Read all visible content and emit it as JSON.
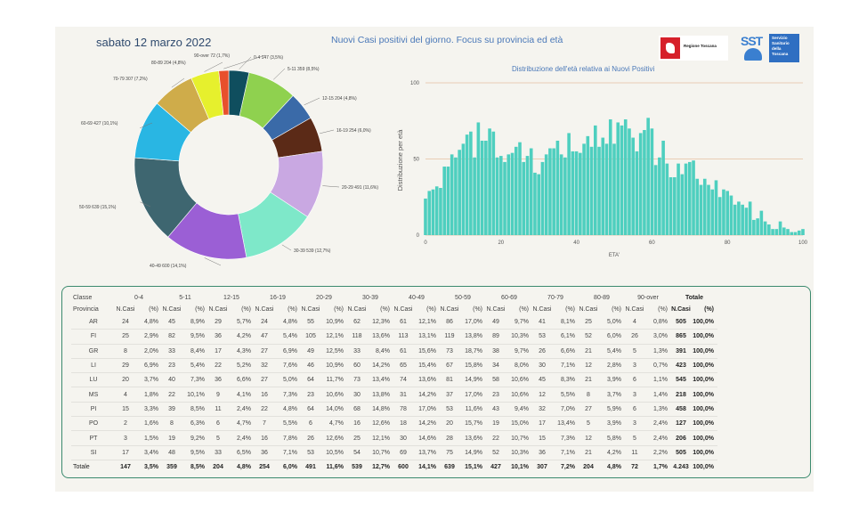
{
  "header": {
    "date": "sabato 12 marzo 2022",
    "title": "Nuovi Casi positivi del giorno. Focus su provincia ed età",
    "logo_rt": "Regione Toscana",
    "logo_sst": "SST",
    "logo_ssr": [
      "Servizio",
      "Sanitario",
      "della",
      "Toscana"
    ]
  },
  "colors": {
    "donut": [
      "#0f4e5e",
      "#8fd14f",
      "#3a6aa8",
      "#5b2a17",
      "#c9a8e2",
      "#7ee8c9",
      "#9b5fd5",
      "#3e6670",
      "#29b6e3",
      "#cfac4a",
      "#e6f02d",
      "#e8502c"
    ],
    "bars": "#4ecfbf",
    "hist_grid": "#e5c0a0"
  },
  "chart_data": [
    {
      "type": "pie",
      "title": "",
      "categories": [
        "0-4",
        "5-11",
        "12-15",
        "16-19",
        "20-29",
        "30-39",
        "40-49",
        "50-59",
        "60-69",
        "70-79",
        "80-89",
        "90-over"
      ],
      "values": [
        147,
        359,
        204,
        254,
        491,
        539,
        600,
        639,
        427,
        307,
        204,
        72
      ],
      "labels": [
        "0-4 147 (3,5%)",
        "5-11 359 (8,5%)",
        "12-15 204 (4,8%)",
        "16-19 254 (6,0%)",
        "20-29 491 (11,6%)",
        "30-39 539 (12,7%)",
        "40-49 600 (14,1%)",
        "50-59 639 (15,1%)",
        "60-69 427 (10,1%)",
        "70-79 307 (7,2%)",
        "80-89 204 (4,8%)",
        "90-over 72 (1,7%)"
      ]
    },
    {
      "type": "bar",
      "title": "Distribuzione dell'età relativa ai Nuovi Positivi",
      "xlabel": "ETA'",
      "ylabel": "Distribuzione per età",
      "xlim": [
        0,
        100
      ],
      "ylim": [
        0,
        100
      ],
      "yticks": [
        0,
        50,
        100
      ],
      "xticks": [
        0,
        20,
        40,
        60,
        80,
        100
      ],
      "x": [
        0,
        1,
        2,
        3,
        4,
        5,
        6,
        7,
        8,
        9,
        10,
        11,
        12,
        13,
        14,
        15,
        16,
        17,
        18,
        19,
        20,
        21,
        22,
        23,
        24,
        25,
        26,
        27,
        28,
        29,
        30,
        31,
        32,
        33,
        34,
        35,
        36,
        37,
        38,
        39,
        40,
        41,
        42,
        43,
        44,
        45,
        46,
        47,
        48,
        49,
        50,
        51,
        52,
        53,
        54,
        55,
        56,
        57,
        58,
        59,
        60,
        61,
        62,
        63,
        64,
        65,
        66,
        67,
        68,
        69,
        70,
        71,
        72,
        73,
        74,
        75,
        76,
        77,
        78,
        79,
        80,
        81,
        82,
        83,
        84,
        85,
        86,
        87,
        88,
        89,
        90,
        91,
        92,
        93,
        94,
        95,
        96,
        97,
        98,
        99,
        100
      ],
      "values": [
        24,
        29,
        30,
        32,
        31,
        45,
        45,
        53,
        51,
        56,
        60,
        66,
        68,
        51,
        74,
        62,
        62,
        70,
        68,
        51,
        52,
        48,
        53,
        54,
        58,
        61,
        48,
        52,
        57,
        41,
        40,
        48,
        53,
        57,
        57,
        62,
        53,
        51,
        67,
        55,
        55,
        54,
        60,
        65,
        58,
        72,
        58,
        64,
        60,
        76,
        60,
        74,
        72,
        76,
        70,
        64,
        55,
        67,
        69,
        77,
        70,
        46,
        51,
        62,
        47,
        38,
        38,
        47,
        40,
        47,
        48,
        49,
        37,
        33,
        37,
        33,
        30,
        36,
        25,
        30,
        29,
        26,
        20,
        22,
        20,
        18,
        22,
        10,
        11,
        16,
        9,
        7,
        4,
        4,
        9,
        5,
        4,
        2,
        2,
        3,
        4
      ]
    },
    {
      "type": "table",
      "class_header": "Classe",
      "province_header": "Provincia",
      "classes": [
        "0-4",
        "5-11",
        "12-15",
        "16-19",
        "20-29",
        "30-39",
        "40-49",
        "50-59",
        "60-69",
        "70-79",
        "80-89",
        "90-over"
      ],
      "subheaders": [
        "N.Casi",
        "(%)"
      ],
      "total_header": "Totale",
      "rows": [
        {
          "prov": "AR",
          "cells": [
            "24",
            "4,8%",
            "45",
            "8,9%",
            "29",
            "5,7%",
            "24",
            "4,8%",
            "55",
            "10,9%",
            "62",
            "12,3%",
            "61",
            "12,1%",
            "86",
            "17,0%",
            "49",
            "9,7%",
            "41",
            "8,1%",
            "25",
            "5,0%",
            "4",
            "0,8%"
          ],
          "tot": "505",
          "pct": "100,0%"
        },
        {
          "prov": "FI",
          "cells": [
            "25",
            "2,9%",
            "82",
            "9,5%",
            "36",
            "4,2%",
            "47",
            "5,4%",
            "105",
            "12,1%",
            "118",
            "13,6%",
            "113",
            "13,1%",
            "119",
            "13,8%",
            "89",
            "10,3%",
            "53",
            "6,1%",
            "52",
            "6,0%",
            "26",
            "3,0%"
          ],
          "tot": "865",
          "pct": "100,0%"
        },
        {
          "prov": "GR",
          "cells": [
            "8",
            "2,0%",
            "33",
            "8,4%",
            "17",
            "4,3%",
            "27",
            "6,9%",
            "49",
            "12,5%",
            "33",
            "8,4%",
            "61",
            "15,6%",
            "73",
            "18,7%",
            "38",
            "9,7%",
            "26",
            "6,6%",
            "21",
            "5,4%",
            "5",
            "1,3%"
          ],
          "tot": "391",
          "pct": "100,0%"
        },
        {
          "prov": "LI",
          "cells": [
            "29",
            "6,9%",
            "23",
            "5,4%",
            "22",
            "5,2%",
            "32",
            "7,6%",
            "46",
            "10,9%",
            "60",
            "14,2%",
            "65",
            "15,4%",
            "67",
            "15,8%",
            "34",
            "8,0%",
            "30",
            "7,1%",
            "12",
            "2,8%",
            "3",
            "0,7%"
          ],
          "tot": "423",
          "pct": "100,0%"
        },
        {
          "prov": "LU",
          "cells": [
            "20",
            "3,7%",
            "40",
            "7,3%",
            "36",
            "6,6%",
            "27",
            "5,0%",
            "64",
            "11,7%",
            "73",
            "13,4%",
            "74",
            "13,6%",
            "81",
            "14,9%",
            "58",
            "10,6%",
            "45",
            "8,3%",
            "21",
            "3,9%",
            "6",
            "1,1%"
          ],
          "tot": "545",
          "pct": "100,0%"
        },
        {
          "prov": "MS",
          "cells": [
            "4",
            "1,8%",
            "22",
            "10,1%",
            "9",
            "4,1%",
            "16",
            "7,3%",
            "23",
            "10,6%",
            "30",
            "13,8%",
            "31",
            "14,2%",
            "37",
            "17,0%",
            "23",
            "10,6%",
            "12",
            "5,5%",
            "8",
            "3,7%",
            "3",
            "1,4%"
          ],
          "tot": "218",
          "pct": "100,0%"
        },
        {
          "prov": "PI",
          "cells": [
            "15",
            "3,3%",
            "39",
            "8,5%",
            "11",
            "2,4%",
            "22",
            "4,8%",
            "64",
            "14,0%",
            "68",
            "14,8%",
            "78",
            "17,0%",
            "53",
            "11,6%",
            "43",
            "9,4%",
            "32",
            "7,0%",
            "27",
            "5,9%",
            "6",
            "1,3%"
          ],
          "tot": "458",
          "pct": "100,0%"
        },
        {
          "prov": "PO",
          "cells": [
            "2",
            "1,6%",
            "8",
            "6,3%",
            "6",
            "4,7%",
            "7",
            "5,5%",
            "6",
            "4,7%",
            "16",
            "12,6%",
            "18",
            "14,2%",
            "20",
            "15,7%",
            "19",
            "15,0%",
            "17",
            "13,4%",
            "5",
            "3,9%",
            "3",
            "2,4%"
          ],
          "tot": "127",
          "pct": "100,0%"
        },
        {
          "prov": "PT",
          "cells": [
            "3",
            "1,5%",
            "19",
            "9,2%",
            "5",
            "2,4%",
            "16",
            "7,8%",
            "26",
            "12,6%",
            "25",
            "12,1%",
            "30",
            "14,6%",
            "28",
            "13,6%",
            "22",
            "10,7%",
            "15",
            "7,3%",
            "12",
            "5,8%",
            "5",
            "2,4%"
          ],
          "tot": "206",
          "pct": "100,0%"
        },
        {
          "prov": "SI",
          "cells": [
            "17",
            "3,4%",
            "48",
            "9,5%",
            "33",
            "6,5%",
            "36",
            "7,1%",
            "53",
            "10,5%",
            "54",
            "10,7%",
            "69",
            "13,7%",
            "75",
            "14,9%",
            "52",
            "10,3%",
            "36",
            "7,1%",
            "21",
            "4,2%",
            "11",
            "2,2%"
          ],
          "tot": "505",
          "pct": "100,0%"
        }
      ],
      "total_row": {
        "prov": "Totale",
        "cells": [
          "147",
          "3,5%",
          "359",
          "8,5%",
          "204",
          "4,8%",
          "254",
          "6,0%",
          "491",
          "11,6%",
          "539",
          "12,7%",
          "600",
          "14,1%",
          "639",
          "15,1%",
          "427",
          "10,1%",
          "307",
          "7,2%",
          "204",
          "4,8%",
          "72",
          "1,7%"
        ],
        "tot": "4.243",
        "pct": "100,0%"
      }
    }
  ]
}
